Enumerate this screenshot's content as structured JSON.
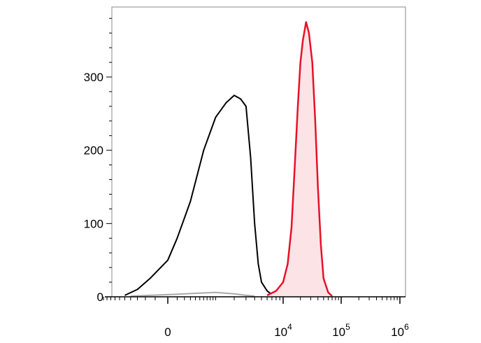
{
  "chart_data": {
    "type": "area",
    "title": "",
    "xlabel": "",
    "ylabel": "",
    "x_scale": "logicle",
    "ylim": [
      0,
      380
    ],
    "y_ticks": [
      0,
      100,
      200,
      300
    ],
    "x_ticks": [
      {
        "base": "0",
        "exp": "",
        "value": 0
      },
      {
        "base": "10",
        "exp": "4",
        "value": 10000
      },
      {
        "base": "10",
        "exp": "5",
        "value": 100000
      },
      {
        "base": "10",
        "exp": "6",
        "value": 1000000
      }
    ],
    "grid": false,
    "legend": "none",
    "series": [
      {
        "color": "#000000",
        "fill": "none",
        "x": [
          -500,
          -300,
          -150,
          0,
          100,
          300,
          600,
          1000,
          1500,
          2000,
          2500,
          3000,
          3500,
          4000,
          4500,
          5000,
          6000,
          7000,
          8000
        ],
        "y": [
          2,
          10,
          25,
          50,
          80,
          130,
          200,
          245,
          265,
          275,
          270,
          260,
          190,
          100,
          45,
          20,
          8,
          3,
          1
        ]
      },
      {
        "color": "#e8102a",
        "fill": "#fce4e6",
        "x": [
          6000,
          8000,
          10000,
          12000,
          14000,
          16000,
          18000,
          20000,
          22000,
          25000,
          28000,
          32000,
          36000,
          40000,
          45000,
          50000,
          60000,
          70000
        ],
        "y": [
          2,
          8,
          20,
          45,
          95,
          180,
          260,
          320,
          350,
          375,
          360,
          320,
          240,
          150,
          70,
          25,
          6,
          1
        ]
      },
      {
        "color": "#aaaaaa",
        "fill": "none",
        "x": [
          -400,
          0,
          500,
          1000,
          2000,
          3000,
          4000
        ],
        "y": [
          1,
          3,
          5,
          6,
          4,
          2,
          1
        ]
      }
    ]
  }
}
